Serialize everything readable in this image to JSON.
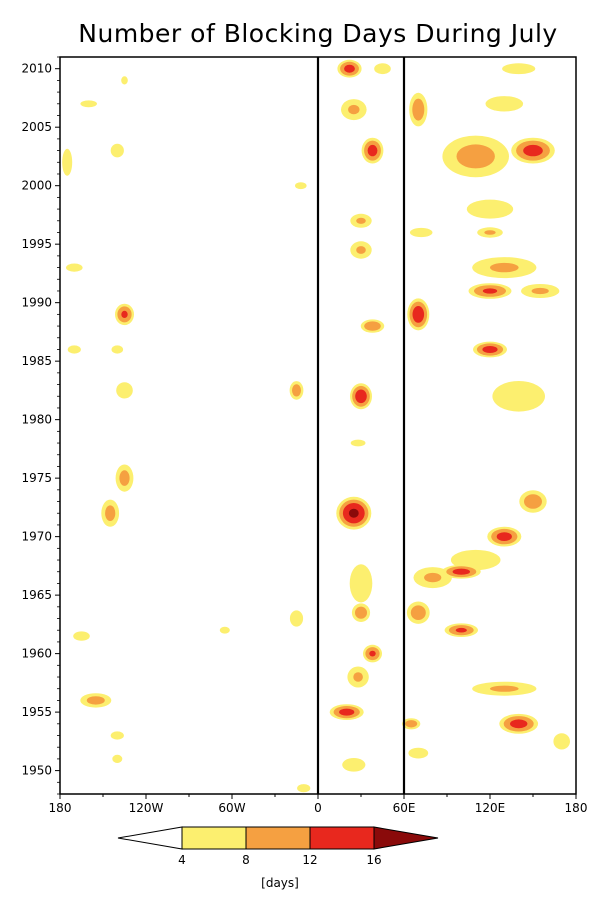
{
  "chart_data": {
    "type": "heatmap",
    "title": "Number of Blocking Days During July",
    "xlabel": "",
    "ylabel": "",
    "x_axis": {
      "range": [
        -180,
        180
      ],
      "ticks": [
        {
          "value": -180,
          "label": "180"
        },
        {
          "value": -120,
          "label": "120W"
        },
        {
          "value": -60,
          "label": "60W"
        },
        {
          "value": 0,
          "label": "0"
        },
        {
          "value": 60,
          "label": "60E"
        },
        {
          "value": 120,
          "label": "120E"
        },
        {
          "value": 180,
          "label": "180"
        }
      ]
    },
    "y_axis": {
      "range": [
        1948,
        2011
      ],
      "ticks": [
        {
          "value": 1950,
          "label": "1950"
        },
        {
          "value": 1955,
          "label": "1955"
        },
        {
          "value": 1960,
          "label": "1960"
        },
        {
          "value": 1965,
          "label": "1965"
        },
        {
          "value": 1970,
          "label": "1970"
        },
        {
          "value": 1975,
          "label": "1975"
        },
        {
          "value": 1980,
          "label": "1980"
        },
        {
          "value": 1985,
          "label": "1985"
        },
        {
          "value": 1990,
          "label": "1990"
        },
        {
          "value": 1995,
          "label": "1995"
        },
        {
          "value": 2000,
          "label": "2000"
        },
        {
          "value": 2005,
          "label": "2005"
        },
        {
          "value": 2010,
          "label": "2010"
        }
      ]
    },
    "grid": false,
    "reference_lines": [
      {
        "orientation": "vertical",
        "value": 0
      },
      {
        "orientation": "vertical",
        "value": 60
      }
    ],
    "levels": [
      4,
      8,
      12,
      16
    ],
    "level_colors": [
      "#ffffff",
      "#fcef6f",
      "#f5a041",
      "#e8281e",
      "#8a0a0a"
    ],
    "colorbar": {
      "labels": [
        "4",
        "8",
        "12",
        "16"
      ],
      "units": "[days]",
      "placement": "bottom"
    },
    "blobs": [
      {
        "lon": 22,
        "year": 2010,
        "r_lon": 10,
        "r_year": 0.9,
        "peak": 14
      },
      {
        "lon": 45,
        "year": 2010,
        "r_lon": 10,
        "r_year": 0.8,
        "peak": 6
      },
      {
        "lon": 140,
        "year": 2010,
        "r_lon": 20,
        "r_year": 0.8,
        "peak": 6
      },
      {
        "lon": -135,
        "year": 2009,
        "r_lon": 4,
        "r_year": 0.6,
        "peak": 6
      },
      {
        "lon": -160,
        "year": 2007,
        "r_lon": 10,
        "r_year": 0.5,
        "peak": 6
      },
      {
        "lon": 70,
        "year": 2006.5,
        "r_lon": 8,
        "r_year": 1.8,
        "peak": 11
      },
      {
        "lon": 25,
        "year": 2006.5,
        "r_lon": 12,
        "r_year": 1.2,
        "peak": 9
      },
      {
        "lon": 130,
        "year": 2007,
        "r_lon": 20,
        "r_year": 1.0,
        "peak": 7
      },
      {
        "lon": 150,
        "year": 2003,
        "r_lon": 18,
        "r_year": 1.3,
        "peak": 14
      },
      {
        "lon": 38,
        "year": 2003,
        "r_lon": 9,
        "r_year": 1.3,
        "peak": 14
      },
      {
        "lon": 110,
        "year": 2002.5,
        "r_lon": 30,
        "r_year": 2.3,
        "peak": 10
      },
      {
        "lon": -140,
        "year": 2003,
        "r_lon": 8,
        "r_year": 1.0,
        "peak": 6
      },
      {
        "lon": -175,
        "year": 2002,
        "r_lon": 6,
        "r_year": 2.0,
        "peak": 6
      },
      {
        "lon": -12,
        "year": 2000,
        "r_lon": 7,
        "r_year": 0.5,
        "peak": 6
      },
      {
        "lon": 30,
        "year": 1997,
        "r_lon": 10,
        "r_year": 0.8,
        "peak": 9
      },
      {
        "lon": 120,
        "year": 1998,
        "r_lon": 28,
        "r_year": 1.4,
        "peak": 6
      },
      {
        "lon": 120,
        "year": 1996,
        "r_lon": 12,
        "r_year": 0.6,
        "peak": 9
      },
      {
        "lon": 72,
        "year": 1996,
        "r_lon": 12,
        "r_year": 0.6,
        "peak": 7
      },
      {
        "lon": 30,
        "year": 1994.5,
        "r_lon": 10,
        "r_year": 1.0,
        "peak": 9
      },
      {
        "lon": 130,
        "year": 1993,
        "r_lon": 30,
        "r_year": 1.2,
        "peak": 9
      },
      {
        "lon": 155,
        "year": 1991,
        "r_lon": 18,
        "r_year": 0.8,
        "peak": 9
      },
      {
        "lon": -170,
        "year": 1993,
        "r_lon": 10,
        "r_year": 0.6,
        "peak": 6
      },
      {
        "lon": 70,
        "year": 1989,
        "r_lon": 9,
        "r_year": 1.6,
        "peak": 15
      },
      {
        "lon": 120,
        "year": 1991,
        "r_lon": 18,
        "r_year": 0.8,
        "peak": 13
      },
      {
        "lon": -135,
        "year": 1989,
        "r_lon": 8,
        "r_year": 1.1,
        "peak": 13
      },
      {
        "lon": 38,
        "year": 1988,
        "r_lon": 10,
        "r_year": 0.7,
        "peak": 12
      },
      {
        "lon": 120,
        "year": 1986,
        "r_lon": 14,
        "r_year": 0.8,
        "peak": 14
      },
      {
        "lon": -170,
        "year": 1986,
        "r_lon": 8,
        "r_year": 0.6,
        "peak": 6
      },
      {
        "lon": -140,
        "year": 1986,
        "r_lon": 7,
        "r_year": 0.6,
        "peak": 6
      },
      {
        "lon": 30,
        "year": 1982,
        "r_lon": 9,
        "r_year": 1.3,
        "peak": 15
      },
      {
        "lon": -15,
        "year": 1982.5,
        "r_lon": 6,
        "r_year": 1.0,
        "peak": 11
      },
      {
        "lon": -135,
        "year": 1982.5,
        "r_lon": 10,
        "r_year": 1.2,
        "peak": 6
      },
      {
        "lon": 140,
        "year": 1982,
        "r_lon": 28,
        "r_year": 2.0,
        "peak": 7
      },
      {
        "lon": 28,
        "year": 1978,
        "r_lon": 9,
        "r_year": 0.5,
        "peak": 6
      },
      {
        "lon": -135,
        "year": 1975,
        "r_lon": 8,
        "r_year": 1.5,
        "peak": 10
      },
      {
        "lon": -145,
        "year": 1972,
        "r_lon": 8,
        "r_year": 1.5,
        "peak": 10
      },
      {
        "lon": 25,
        "year": 1972,
        "r_lon": 14,
        "r_year": 1.6,
        "peak": 17
      },
      {
        "lon": 150,
        "year": 1973,
        "r_lon": 12,
        "r_year": 1.2,
        "peak": 11
      },
      {
        "lon": 130,
        "year": 1970,
        "r_lon": 14,
        "r_year": 1.0,
        "peak": 14
      },
      {
        "lon": 100,
        "year": 1967,
        "r_lon": 16,
        "r_year": 0.7,
        "peak": 14
      },
      {
        "lon": 80,
        "year": 1966.5,
        "r_lon": 18,
        "r_year": 1.2,
        "peak": 9
      },
      {
        "lon": 110,
        "year": 1968,
        "r_lon": 30,
        "r_year": 1.5,
        "peak": 6
      },
      {
        "lon": 30,
        "year": 1966,
        "r_lon": 12,
        "r_year": 2.5,
        "peak": 7
      },
      {
        "lon": 30,
        "year": 1963.5,
        "r_lon": 8,
        "r_year": 1.0,
        "peak": 11
      },
      {
        "lon": 70,
        "year": 1963.5,
        "r_lon": 10,
        "r_year": 1.2,
        "peak": 11
      },
      {
        "lon": 100,
        "year": 1962,
        "r_lon": 14,
        "r_year": 0.7,
        "peak": 13
      },
      {
        "lon": -15,
        "year": 1963,
        "r_lon": 8,
        "r_year": 1.2,
        "peak": 6
      },
      {
        "lon": -65,
        "year": 1962,
        "r_lon": 6,
        "r_year": 0.5,
        "peak": 6
      },
      {
        "lon": -165,
        "year": 1961.5,
        "r_lon": 10,
        "r_year": 0.7,
        "peak": 6
      },
      {
        "lon": 38,
        "year": 1960,
        "r_lon": 8,
        "r_year": 0.9,
        "peak": 13
      },
      {
        "lon": 28,
        "year": 1958,
        "r_lon": 10,
        "r_year": 1.2,
        "peak": 9
      },
      {
        "lon": 130,
        "year": 1957,
        "r_lon": 30,
        "r_year": 0.8,
        "peak": 9
      },
      {
        "lon": 20,
        "year": 1955,
        "r_lon": 14,
        "r_year": 0.8,
        "peak": 14
      },
      {
        "lon": 140,
        "year": 1954,
        "r_lon": 16,
        "r_year": 1.0,
        "peak": 14
      },
      {
        "lon": -155,
        "year": 1956,
        "r_lon": 14,
        "r_year": 0.8,
        "peak": 10
      },
      {
        "lon": -140,
        "year": 1953,
        "r_lon": 8,
        "r_year": 0.6,
        "peak": 6
      },
      {
        "lon": -140,
        "year": 1951,
        "r_lon": 6,
        "r_year": 0.6,
        "peak": 6
      },
      {
        "lon": 65,
        "year": 1954,
        "r_lon": 8,
        "r_year": 0.6,
        "peak": 11
      },
      {
        "lon": 70,
        "year": 1951.5,
        "r_lon": 12,
        "r_year": 0.8,
        "peak": 6
      },
      {
        "lon": 25,
        "year": 1950.5,
        "r_lon": 14,
        "r_year": 1.0,
        "peak": 6
      },
      {
        "lon": 170,
        "year": 1952.5,
        "r_lon": 10,
        "r_year": 1.2,
        "peak": 6
      },
      {
        "lon": -10,
        "year": 1948.5,
        "r_lon": 8,
        "r_year": 0.6,
        "peak": 6
      }
    ]
  }
}
